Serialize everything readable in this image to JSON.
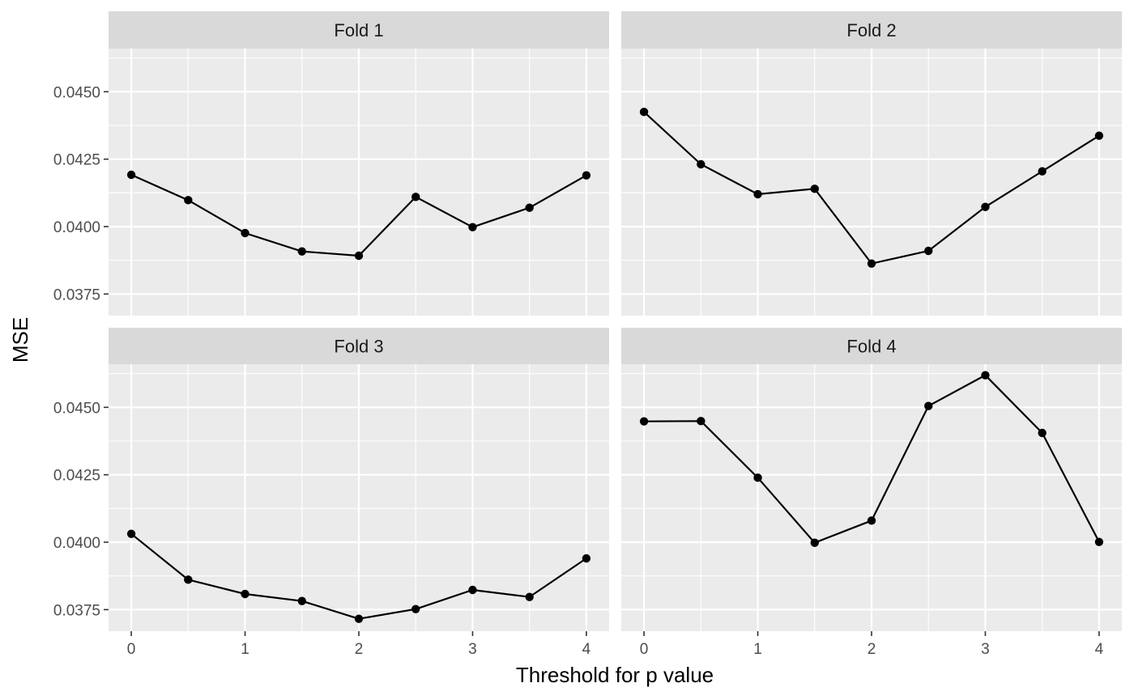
{
  "chart_data": {
    "type": "line",
    "xlabel": "Threshold for p value",
    "ylabel": "MSE",
    "x_ticks": [
      "0",
      "1",
      "2",
      "3",
      "4"
    ],
    "y_ticks": [
      "0.0375",
      "0.0400",
      "0.0425",
      "0.0450"
    ],
    "xlim": [
      -0.2,
      4.2
    ],
    "ylim": [
      0.0367,
      0.0466
    ],
    "grid": true,
    "facet_layout": "2x2",
    "x": [
      0,
      0.5,
      1,
      1.5,
      2,
      2.5,
      3,
      3.5,
      4
    ],
    "panels": [
      {
        "title": "Fold 1",
        "values": [
          0.04192,
          0.04098,
          0.03976,
          0.03908,
          0.03892,
          0.0411,
          0.03998,
          0.0407,
          0.0419
        ]
      },
      {
        "title": "Fold 2",
        "values": [
          0.04425,
          0.04231,
          0.0412,
          0.0414,
          0.03863,
          0.0391,
          0.04073,
          0.04205,
          0.04337
        ]
      },
      {
        "title": "Fold 3",
        "values": [
          0.04031,
          0.03861,
          0.03808,
          0.03782,
          0.03716,
          0.03752,
          0.03823,
          0.03797,
          0.0394
        ]
      },
      {
        "title": "Fold 4",
        "values": [
          0.04448,
          0.04449,
          0.04239,
          0.03998,
          0.0408,
          0.04505,
          0.04619,
          0.04405,
          0.04001
        ]
      }
    ]
  }
}
